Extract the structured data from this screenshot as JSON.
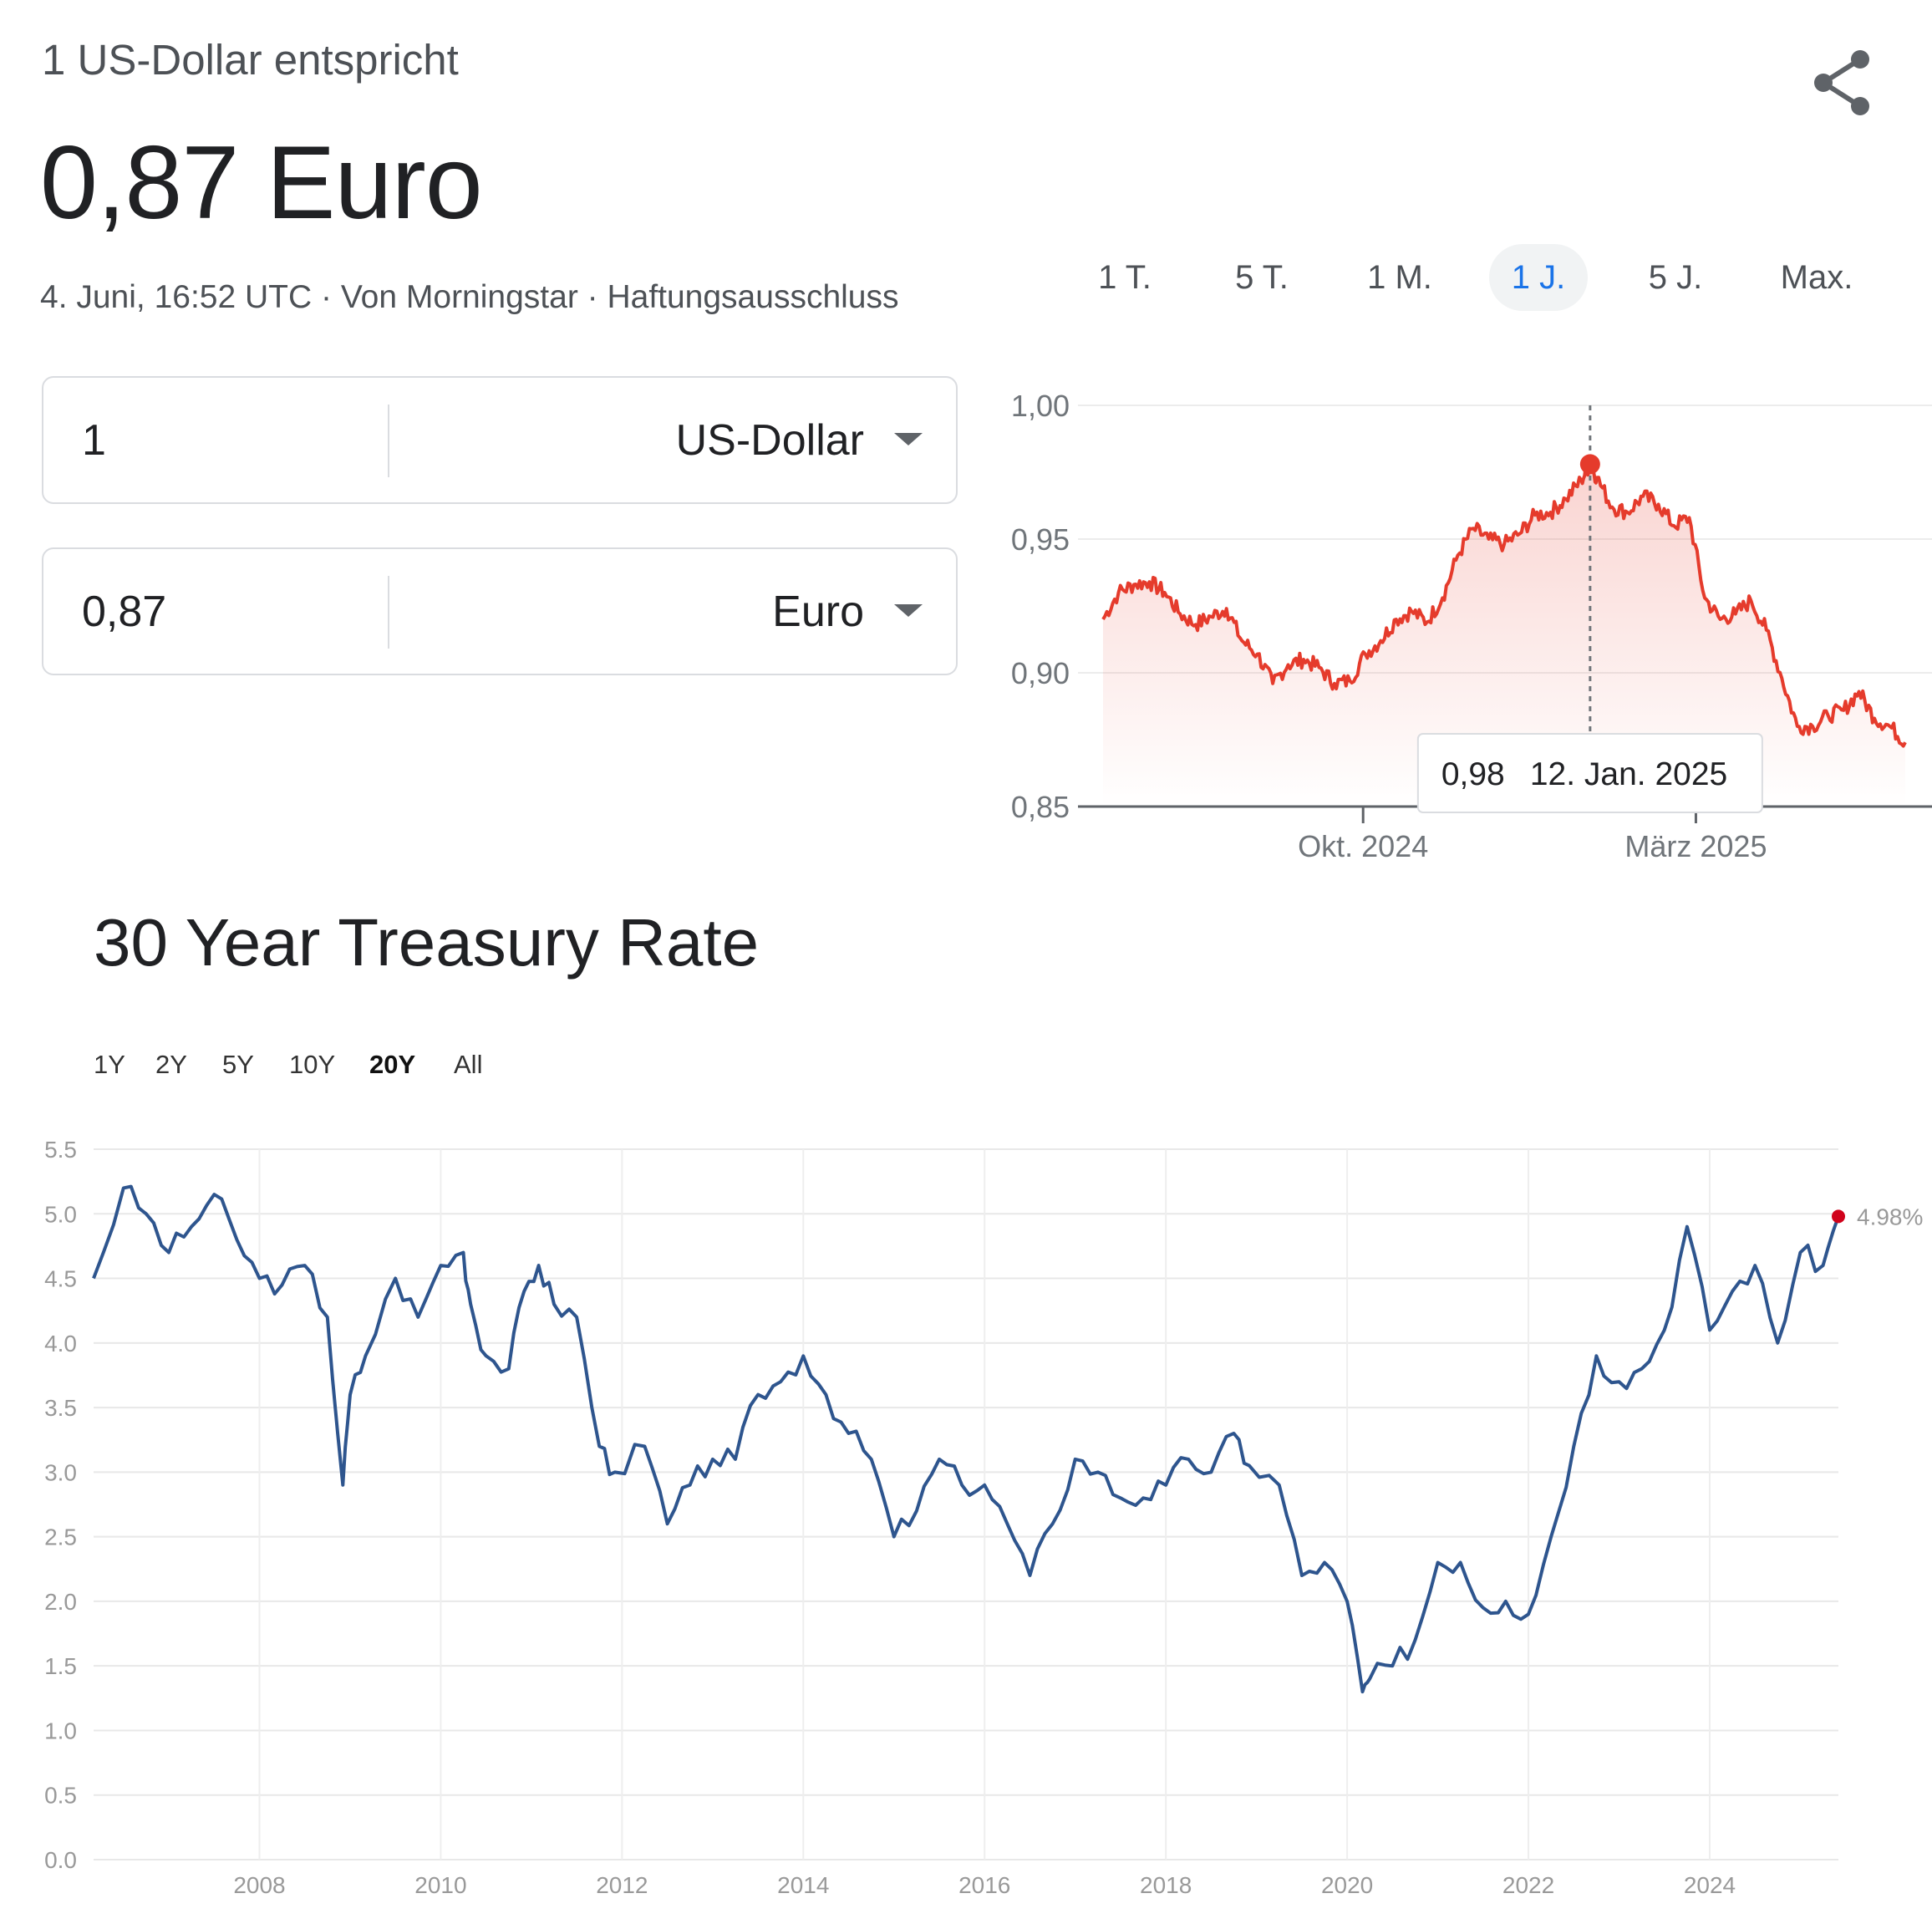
{
  "header": {
    "subtitle": "1 US-Dollar entspricht",
    "value": "0,87 Euro",
    "meta": "4. Juni, 16:52 UTC · Von Morningstar · Haftungsausschluss"
  },
  "icons": {
    "share": "share-icon",
    "dropdown": "caret-down-icon"
  },
  "converter": {
    "from": {
      "amount": "1",
      "currency": "US-Dollar"
    },
    "to": {
      "amount": "0,87",
      "currency": "Euro"
    }
  },
  "fx_ranges": [
    "1 T.",
    "5 T.",
    "1 M.",
    "1 J.",
    "5 J.",
    "Max."
  ],
  "fx_active_range": "1 J.",
  "treasury": {
    "title": "30 Year Treasury Rate",
    "ranges": [
      "1Y",
      "2Y",
      "5Y",
      "10Y",
      "20Y",
      "All"
    ],
    "active_range": "20Y"
  },
  "colors": {
    "fx_line": "#e53b2c",
    "treasury_line": "#2e558e",
    "treasury_marker": "#d0021b",
    "active_tab": "#1a73e8"
  },
  "chart_data": [
    {
      "type": "area",
      "series": [
        {
          "x": [
            "2024-06-05",
            "2024-06-12",
            "2024-06-19",
            "2024-06-26",
            "2024-07-03",
            "2024-07-10",
            "2024-07-17",
            "2024-07-24",
            "2024-07-31",
            "2024-08-07",
            "2024-08-14",
            "2024-08-21",
            "2024-08-28",
            "2024-09-04",
            "2024-09-11",
            "2024-09-18",
            "2024-09-25",
            "2024-10-02",
            "2024-10-09",
            "2024-10-16",
            "2024-10-23",
            "2024-10-30",
            "2024-11-06",
            "2024-11-13",
            "2024-11-20",
            "2024-11-27",
            "2024-12-04",
            "2024-12-11",
            "2024-12-18",
            "2024-12-25",
            "2025-01-01",
            "2025-01-08",
            "2025-01-12",
            "2025-01-15",
            "2025-01-22",
            "2025-01-29",
            "2025-02-05",
            "2025-02-12",
            "2025-02-19",
            "2025-02-26",
            "2025-03-05",
            "2025-03-12",
            "2025-03-19",
            "2025-03-26",
            "2025-04-02",
            "2025-04-09",
            "2025-04-16",
            "2025-04-23",
            "2025-04-30",
            "2025-05-07",
            "2025-05-14",
            "2025-05-21",
            "2025-05-28",
            "2025-06-04"
          ],
          "values": [
            0.92,
            0.93,
            0.933,
            0.934,
            0.93,
            0.922,
            0.918,
            0.921,
            0.924,
            0.912,
            0.907,
            0.896,
            0.903,
            0.905,
            0.902,
            0.896,
            0.897,
            0.907,
            0.912,
            0.92,
            0.923,
            0.919,
            0.928,
            0.944,
            0.954,
            0.95,
            0.948,
            0.952,
            0.959,
            0.96,
            0.965,
            0.972,
            0.978,
            0.973,
            0.962,
            0.96,
            0.966,
            0.963,
            0.955,
            0.958,
            0.928,
            0.92,
            0.922,
            0.927,
            0.916,
            0.898,
            0.88,
            0.88,
            0.884,
            0.886,
            0.893,
            0.883,
            0.88,
            0.874
          ]
        }
      ],
      "ylim": [
        0.85,
        1.0
      ],
      "yticks": [
        "1,00",
        "0,95",
        "0,90",
        "0,85"
      ],
      "xticks": [
        "Okt. 2024",
        "März 2025"
      ],
      "grid": true,
      "tooltip": {
        "value": "0,98",
        "date": "12. Jan. 2025"
      }
    },
    {
      "type": "line",
      "title": "30 Year Treasury Rate",
      "series": [
        {
          "x": [
            2006.17,
            2006.5,
            2006.75,
            2007.0,
            2007.25,
            2007.5,
            2007.75,
            2008.0,
            2008.25,
            2008.5,
            2008.75,
            2008.92,
            2009.0,
            2009.17,
            2009.5,
            2009.75,
            2010.0,
            2010.25,
            2010.33,
            2010.5,
            2010.75,
            2010.92,
            2011.08,
            2011.25,
            2011.5,
            2011.75,
            2011.92,
            2012.25,
            2012.5,
            2012.75,
            2013.0,
            2013.25,
            2013.5,
            2013.75,
            2014.0,
            2014.25,
            2014.5,
            2014.75,
            2015.0,
            2015.25,
            2015.5,
            2015.75,
            2016.0,
            2016.25,
            2016.5,
            2016.75,
            2017.0,
            2017.25,
            2017.5,
            2017.75,
            2018.0,
            2018.25,
            2018.5,
            2018.75,
            2018.92,
            2019.25,
            2019.5,
            2019.75,
            2020.0,
            2020.17,
            2020.25,
            2020.5,
            2020.75,
            2021.0,
            2021.25,
            2021.5,
            2021.75,
            2022.0,
            2022.25,
            2022.5,
            2022.75,
            2023.0,
            2023.25,
            2023.5,
            2023.75,
            2024.0,
            2024.25,
            2024.5,
            2024.75,
            2025.0,
            2025.25,
            2025.42
          ],
          "values": [
            4.5,
            5.2,
            5.0,
            4.7,
            4.9,
            5.15,
            4.8,
            4.5,
            4.45,
            4.6,
            4.2,
            2.9,
            3.6,
            3.9,
            4.5,
            4.2,
            4.6,
            4.7,
            4.3,
            3.9,
            3.8,
            4.4,
            4.6,
            4.3,
            4.2,
            3.2,
            3.0,
            3.2,
            2.6,
            2.9,
            3.1,
            3.1,
            3.6,
            3.7,
            3.9,
            3.6,
            3.3,
            3.1,
            2.5,
            2.7,
            3.1,
            2.9,
            2.9,
            2.6,
            2.2,
            2.6,
            3.1,
            3.0,
            2.8,
            2.8,
            2.9,
            3.1,
            3.0,
            3.3,
            3.05,
            2.9,
            2.2,
            2.3,
            2.0,
            1.3,
            1.4,
            1.5,
            1.7,
            2.3,
            2.3,
            1.95,
            2.0,
            1.9,
            2.5,
            3.2,
            3.9,
            3.7,
            3.8,
            4.1,
            4.9,
            4.1,
            4.4,
            4.6,
            4.0,
            4.7,
            4.6,
            4.98
          ]
        }
      ],
      "ylim": [
        0,
        5.5
      ],
      "yticks": [
        "5.5",
        "5.0",
        "4.5",
        "4.0",
        "3.5",
        "3.0",
        "2.5",
        "2.0",
        "1.5",
        "1.0",
        "0.5",
        "0.0"
      ],
      "xticks": [
        "2008",
        "2010",
        "2012",
        "2014",
        "2016",
        "2018",
        "2020",
        "2022",
        "2024"
      ],
      "last_value_label": "4.98%",
      "grid": true
    }
  ]
}
